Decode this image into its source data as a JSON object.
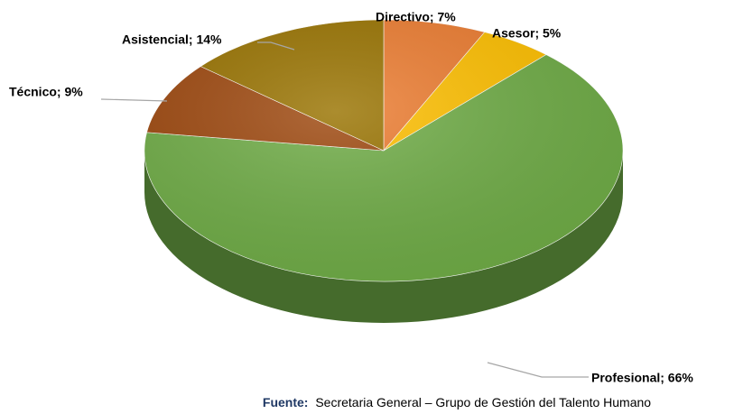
{
  "chart_data": {
    "type": "pie3d",
    "value_labels": [
      "Directivo; 7%",
      "Asesor; 5%",
      "Profesional; 66%",
      "Técnico; 9%",
      "Asistencial; 14%"
    ],
    "values": [
      7,
      5,
      66,
      9,
      14
    ],
    "colors": [
      "#ed7d31",
      "#ffc000",
      "#70ad47",
      "#9e480e",
      "#997300"
    ],
    "source_label": "Fuente:",
    "source": "Secretaria General – Grupo de Gestión del Talento Humano"
  }
}
